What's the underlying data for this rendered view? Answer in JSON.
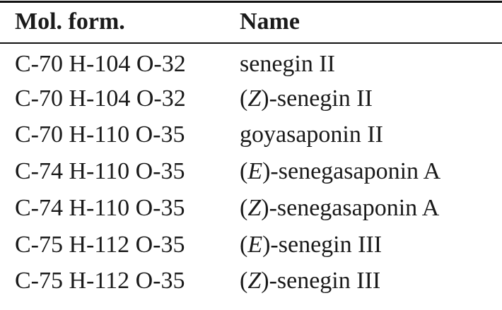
{
  "table": {
    "headers": {
      "formula": "Mol. form.",
      "name": "Name"
    },
    "rows": [
      {
        "formula": "C-70 H-104 O-32",
        "name_prefix": "",
        "name_italic": "",
        "name_suffix": "senegin II"
      },
      {
        "formula": "C-70 H-104 O-32",
        "name_prefix": "(",
        "name_italic": "Z",
        "name_suffix": ")-senegin II"
      },
      {
        "formula": "C-70 H-110 O-35",
        "name_prefix": "",
        "name_italic": "",
        "name_suffix": "goyasaponin II"
      },
      {
        "formula": "C-74 H-110 O-35",
        "name_prefix": "(",
        "name_italic": "E",
        "name_suffix": ")-senegasaponin A"
      },
      {
        "formula": "C-74 H-110 O-35",
        "name_prefix": "(",
        "name_italic": "Z",
        "name_suffix": ")-senegasaponin A"
      },
      {
        "formula": "C-75 H-112 O-35",
        "name_prefix": "(",
        "name_italic": "E",
        "name_suffix": ")-senegin III"
      },
      {
        "formula": "C-75 H-112 O-35",
        "name_prefix": "(",
        "name_italic": "Z",
        "name_suffix": ")-senegin III"
      }
    ]
  }
}
